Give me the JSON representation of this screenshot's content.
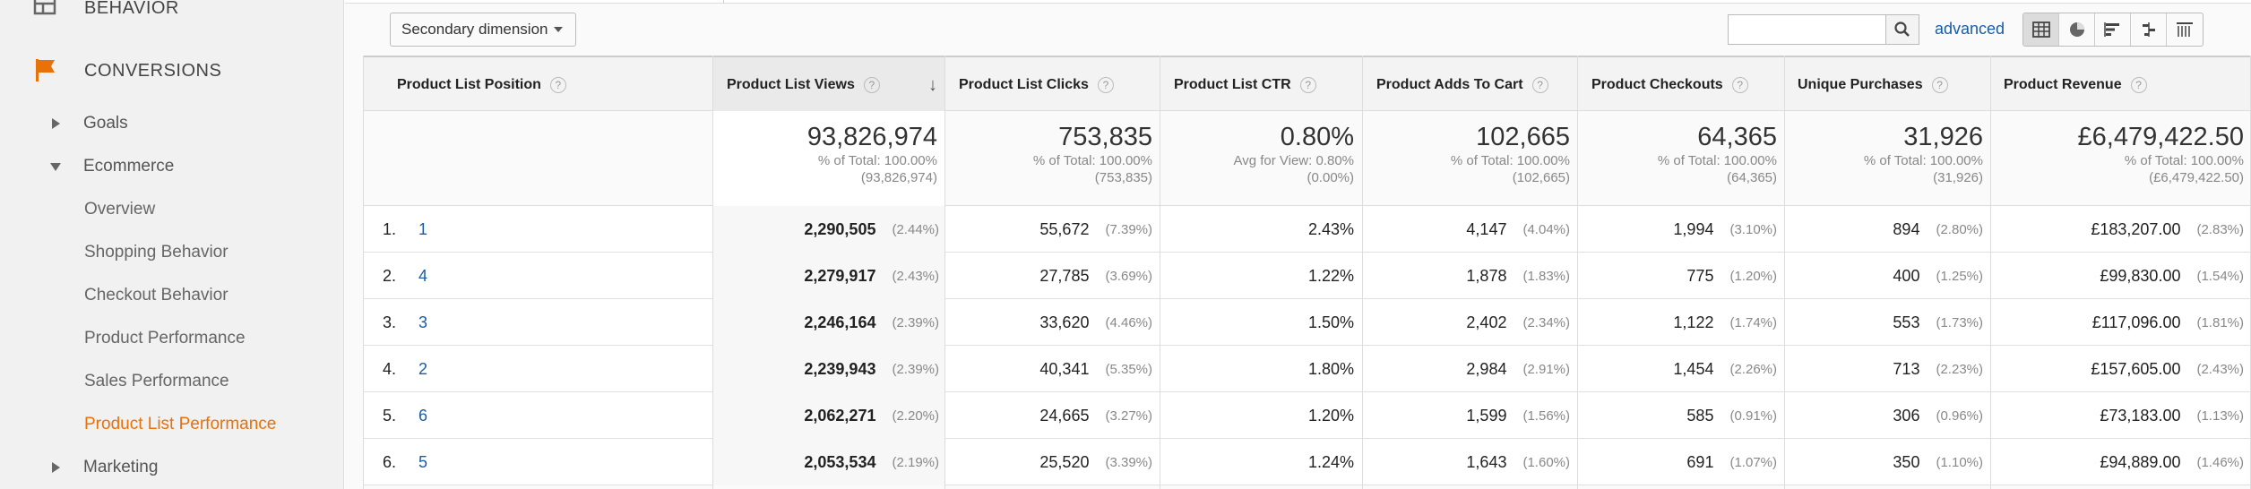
{
  "sidebar": {
    "behavior_label": "BEHAVIOR",
    "conversions_label": "CONVERSIONS",
    "items": [
      {
        "label": "Goals"
      },
      {
        "label": "Ecommerce"
      },
      {
        "label": "Overview"
      },
      {
        "label": "Shopping Behavior"
      },
      {
        "label": "Checkout Behavior"
      },
      {
        "label": "Product Performance"
      },
      {
        "label": "Sales Performance"
      },
      {
        "label": "Product List Performance"
      },
      {
        "label": "Marketing"
      }
    ],
    "accent_color": "#e8710a"
  },
  "toolbar": {
    "secondary_dimension": "Secondary dimension",
    "search_value": "",
    "advanced_label": "advanced",
    "view_icons": [
      "table-view-icon",
      "pie-view-icon",
      "performance-view-icon",
      "comparison-view-icon",
      "pivot-view-icon"
    ]
  },
  "table": {
    "headers": [
      "Product List Position",
      "Product List Views",
      "Product List Clicks",
      "Product List CTR",
      "Product Adds To Cart",
      "Product Checkouts",
      "Unique Purchases",
      "Product Revenue"
    ],
    "help_glyph": "?",
    "sort_glyph": "↓",
    "totals": [
      {
        "value": "93,826,974",
        "line1": "% of Total: 100.00%",
        "line2": "(93,826,974)"
      },
      {
        "value": "753,835",
        "line1": "% of Total: 100.00%",
        "line2": "(753,835)"
      },
      {
        "value": "0.80%",
        "line1": "Avg for View: 0.80%",
        "line2": "(0.00%)"
      },
      {
        "value": "102,665",
        "line1": "% of Total: 100.00%",
        "line2": "(102,665)"
      },
      {
        "value": "64,365",
        "line1": "% of Total: 100.00%",
        "line2": "(64,365)"
      },
      {
        "value": "31,926",
        "line1": "% of Total: 100.00%",
        "line2": "(31,926)"
      },
      {
        "value": "£6,479,422.50",
        "line1": "% of Total: 100.00%",
        "line2": "(£6,479,422.50)"
      }
    ],
    "rows": [
      {
        "num": "1.",
        "position": "1",
        "views": "2,290,505",
        "views_pct": "(2.44%)",
        "clicks": "55,672",
        "clicks_pct": "(7.39%)",
        "ctr": "2.43%",
        "adds": "4,147",
        "adds_pct": "(4.04%)",
        "checkouts": "1,994",
        "checkouts_pct": "(3.10%)",
        "purchases": "894",
        "purchases_pct": "(2.80%)",
        "revenue": "£183,207.00",
        "revenue_pct": "(2.83%)"
      },
      {
        "num": "2.",
        "position": "4",
        "views": "2,279,917",
        "views_pct": "(2.43%)",
        "clicks": "27,785",
        "clicks_pct": "(3.69%)",
        "ctr": "1.22%",
        "adds": "1,878",
        "adds_pct": "(1.83%)",
        "checkouts": "775",
        "checkouts_pct": "(1.20%)",
        "purchases": "400",
        "purchases_pct": "(1.25%)",
        "revenue": "£99,830.00",
        "revenue_pct": "(1.54%)"
      },
      {
        "num": "3.",
        "position": "3",
        "views": "2,246,164",
        "views_pct": "(2.39%)",
        "clicks": "33,620",
        "clicks_pct": "(4.46%)",
        "ctr": "1.50%",
        "adds": "2,402",
        "adds_pct": "(2.34%)",
        "checkouts": "1,122",
        "checkouts_pct": "(1.74%)",
        "purchases": "553",
        "purchases_pct": "(1.73%)",
        "revenue": "£117,096.00",
        "revenue_pct": "(1.81%)"
      },
      {
        "num": "4.",
        "position": "2",
        "views": "2,239,943",
        "views_pct": "(2.39%)",
        "clicks": "40,341",
        "clicks_pct": "(5.35%)",
        "ctr": "1.80%",
        "adds": "2,984",
        "adds_pct": "(2.91%)",
        "checkouts": "1,454",
        "checkouts_pct": "(2.26%)",
        "purchases": "713",
        "purchases_pct": "(2.23%)",
        "revenue": "£157,605.00",
        "revenue_pct": "(2.43%)"
      },
      {
        "num": "5.",
        "position": "6",
        "views": "2,062,271",
        "views_pct": "(2.20%)",
        "clicks": "24,665",
        "clicks_pct": "(3.27%)",
        "ctr": "1.20%",
        "adds": "1,599",
        "adds_pct": "(1.56%)",
        "checkouts": "585",
        "checkouts_pct": "(0.91%)",
        "purchases": "306",
        "purchases_pct": "(0.96%)",
        "revenue": "£73,183.00",
        "revenue_pct": "(1.13%)"
      },
      {
        "num": "6.",
        "position": "5",
        "views": "2,053,534",
        "views_pct": "(2.19%)",
        "clicks": "25,520",
        "clicks_pct": "(3.39%)",
        "ctr": "1.24%",
        "adds": "1,643",
        "adds_pct": "(1.60%)",
        "checkouts": "691",
        "checkouts_pct": "(1.07%)",
        "purchases": "350",
        "purchases_pct": "(1.10%)",
        "revenue": "£94,889.00",
        "revenue_pct": "(1.46%)"
      }
    ]
  }
}
